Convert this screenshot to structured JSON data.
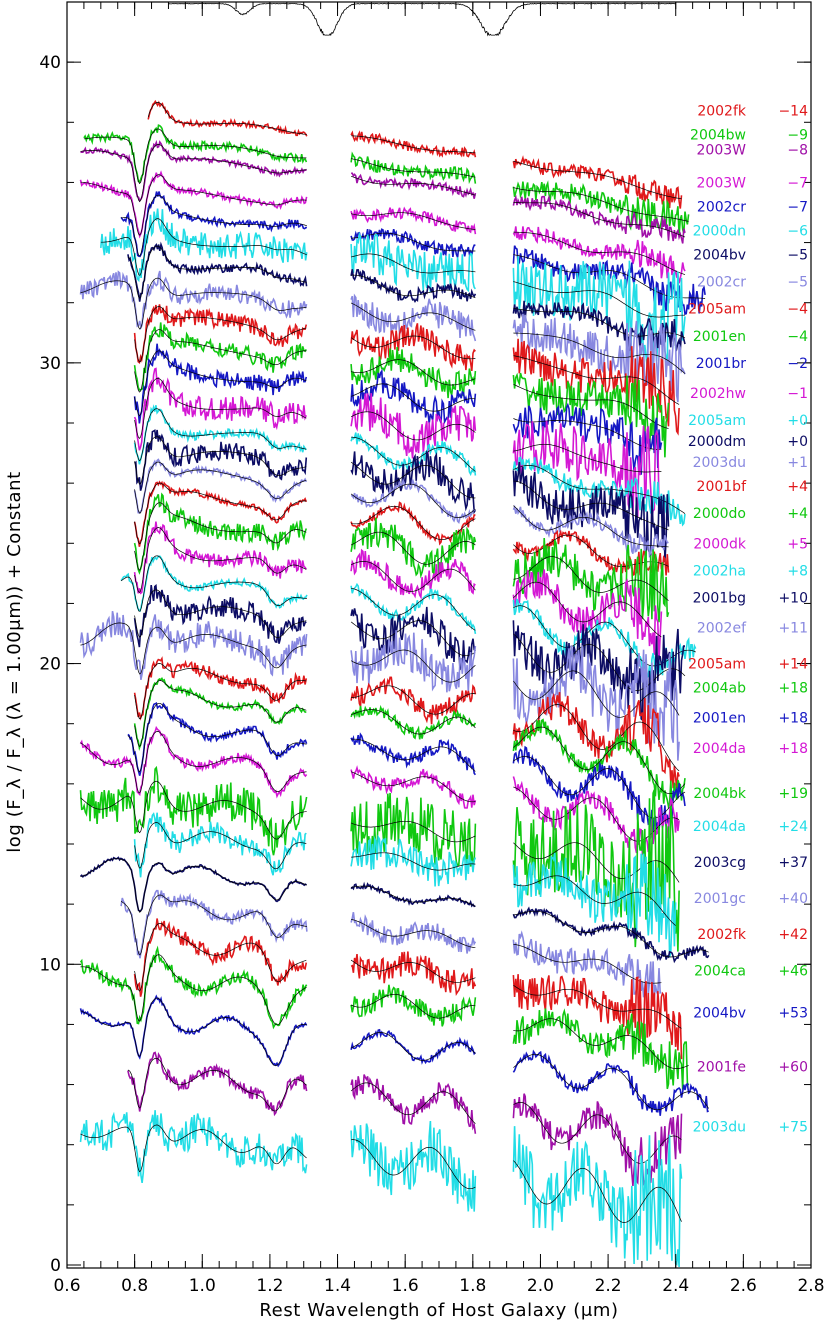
{
  "chart_data": {
    "type": "line",
    "title": "",
    "xlabel": "Rest Wavelength of Host Galaxy (μm)",
    "ylabel": "log (F_λ / F_λ (λ = 1.00μm)) + Constant",
    "xlim": [
      0.6,
      2.8
    ],
    "ylim": [
      -0.1,
      42.0
    ],
    "x_ticks": [
      0.6,
      0.8,
      1.0,
      1.2,
      1.4,
      1.6,
      1.8,
      2.0,
      2.2,
      2.4,
      2.6,
      2.8
    ],
    "x_tick_labels": [
      "0.6",
      "0.8",
      "1.0",
      "1.2",
      "1.4",
      "1.6",
      "1.8",
      "2.0",
      "2.2",
      "2.4",
      "2.6",
      "2.8"
    ],
    "y_ticks": [
      0,
      10,
      20,
      30,
      40
    ],
    "y_tick_labels": [
      "0",
      "10",
      "20",
      "30",
      "40"
    ],
    "windows": [
      [
        0.6,
        1.31
      ],
      [
        1.44,
        1.81
      ],
      [
        1.92,
        2.5
      ]
    ],
    "telluric": {
      "color": "#000000",
      "y_top": 42.0,
      "y_bottom": 40.9
    },
    "legend": "right",
    "series": [
      {
        "name": "2002fk",
        "epoch": "−14",
        "color": "#e0191b",
        "offset": 38.0,
        "x_start": 0.84,
        "x_end": 2.42,
        "noise": 0.1
      },
      {
        "name": "2004bw",
        "epoch": "−9",
        "color": "#10c810",
        "offset": 37.2,
        "x_start": 0.65,
        "x_end": 2.44,
        "noise": 0.14
      },
      {
        "name": "2003W",
        "epoch": "−8",
        "color": "#a010a8",
        "offset": 36.7,
        "x_start": 0.64,
        "x_end": 2.43,
        "noise": 0.1
      },
      {
        "name": "2003W",
        "epoch": "−7",
        "color": "#d418d4",
        "offset": 35.6,
        "x_start": 0.64,
        "x_end": 2.43,
        "noise": 0.12
      },
      {
        "name": "2002cr",
        "epoch": "−7",
        "color": "#1518c4",
        "offset": 34.8,
        "x_start": 0.76,
        "x_end": 2.49,
        "noise": 0.14
      },
      {
        "name": "2000dn",
        "epoch": "−6",
        "color": "#22dde6",
        "offset": 34.0,
        "x_start": 0.7,
        "x_end": 2.43,
        "noise": 0.45
      },
      {
        "name": "2004bv",
        "epoch": "−5",
        "color": "#0c0c64",
        "offset": 33.2,
        "x_start": 0.78,
        "x_end": 2.43,
        "noise": 0.14
      },
      {
        "name": "2002cr",
        "epoch": "−5",
        "color": "#8888e0",
        "offset": 32.3,
        "x_start": 0.64,
        "x_end": 2.43,
        "noise": 0.3
      },
      {
        "name": "2005am",
        "epoch": "−4",
        "color": "#e0191b",
        "offset": 31.4,
        "x_start": 0.8,
        "x_end": 2.41,
        "noise": 0.28
      },
      {
        "name": "2001en",
        "epoch": "−4",
        "color": "#10c810",
        "offset": 30.5,
        "x_start": 0.8,
        "x_end": 2.38,
        "noise": 0.28
      },
      {
        "name": "2001br",
        "epoch": "−2",
        "color": "#1518c4",
        "offset": 29.6,
        "x_start": 0.8,
        "x_end": 2.36,
        "noise": 0.28
      },
      {
        "name": "2002hw",
        "epoch": "−1",
        "color": "#d418d4",
        "offset": 28.6,
        "x_start": 0.8,
        "x_end": 2.36,
        "noise": 0.4
      },
      {
        "name": "2005am",
        "epoch": "+0",
        "color": "#22dde6",
        "offset": 27.7,
        "x_start": 0.8,
        "x_end": 2.43,
        "noise": 0.14
      },
      {
        "name": "2000dm",
        "epoch": "+0",
        "color": "#0c0c64",
        "offset": 27.0,
        "x_start": 0.8,
        "x_end": 2.38,
        "noise": 0.32
      },
      {
        "name": "2003du",
        "epoch": "+1",
        "color": "#8888e0",
        "offset": 26.3,
        "x_start": 0.8,
        "x_end": 2.38,
        "noise": 0.1
      },
      {
        "name": "2001bf",
        "epoch": "+4",
        "color": "#e0191b",
        "offset": 25.5,
        "x_start": 0.8,
        "x_end": 2.38,
        "noise": 0.1
      },
      {
        "name": "2000do",
        "epoch": "+4",
        "color": "#10c810",
        "offset": 24.6,
        "x_start": 0.8,
        "x_end": 2.38,
        "noise": 0.32
      },
      {
        "name": "2000dk",
        "epoch": "+5",
        "color": "#d418d4",
        "offset": 23.6,
        "x_start": 0.8,
        "x_end": 2.36,
        "noise": 0.24
      },
      {
        "name": "2002ha",
        "epoch": "+8",
        "color": "#22dde6",
        "offset": 22.7,
        "x_start": 0.76,
        "x_end": 2.46,
        "noise": 0.12
      },
      {
        "name": "2001bg",
        "epoch": "+10",
        "color": "#0c0c64",
        "offset": 21.8,
        "x_start": 0.8,
        "x_end": 2.43,
        "noise": 0.35
      },
      {
        "name": "2002ef",
        "epoch": "+11",
        "color": "#8888e0",
        "offset": 20.8,
        "x_start": 0.64,
        "x_end": 2.41,
        "noise": 0.45
      },
      {
        "name": "2005am",
        "epoch": "+14",
        "color": "#e0191b",
        "offset": 19.6,
        "x_start": 0.8,
        "x_end": 2.41,
        "noise": 0.22
      },
      {
        "name": "2004ab",
        "epoch": "+18",
        "color": "#10c810",
        "offset": 18.8,
        "x_start": 0.8,
        "x_end": 2.43,
        "noise": 0.12
      },
      {
        "name": "2001en",
        "epoch": "+18",
        "color": "#1518c4",
        "offset": 17.8,
        "x_start": 0.78,
        "x_end": 2.43,
        "noise": 0.14
      },
      {
        "name": "2004da",
        "epoch": "+18",
        "color": "#d418d4",
        "offset": 16.8,
        "x_start": 0.64,
        "x_end": 2.41,
        "noise": 0.16
      },
      {
        "name": "2004bk",
        "epoch": "+19",
        "color": "#10c810",
        "offset": 15.3,
        "x_start": 0.64,
        "x_end": 2.41,
        "noise": 0.65
      },
      {
        "name": "2004da",
        "epoch": "+24",
        "color": "#22dde6",
        "offset": 14.2,
        "x_start": 0.8,
        "x_end": 2.4,
        "noise": 0.35
      },
      {
        "name": "2003cg",
        "epoch": "+37",
        "color": "#0c0c64",
        "offset": 13.0,
        "x_start": 0.64,
        "x_end": 2.5,
        "noise": 0.05
      },
      {
        "name": "2001gc",
        "epoch": "+40",
        "color": "#8888e0",
        "offset": 11.8,
        "x_start": 0.76,
        "x_end": 2.36,
        "noise": 0.2
      },
      {
        "name": "2002fk",
        "epoch": "+42",
        "color": "#e0191b",
        "offset": 10.6,
        "x_start": 0.8,
        "x_end": 2.42,
        "noise": 0.28
      },
      {
        "name": "2004ca",
        "epoch": "+46",
        "color": "#10c810",
        "offset": 9.4,
        "x_start": 0.64,
        "x_end": 2.44,
        "noise": 0.22
      },
      {
        "name": "2004bv",
        "epoch": "+53",
        "color": "#1518c4",
        "offset": 8.0,
        "x_start": 0.64,
        "x_end": 2.5,
        "noise": 0.08
      },
      {
        "name": "2001fe",
        "epoch": "+60",
        "color": "#a010a8",
        "offset": 6.2,
        "x_start": 0.78,
        "x_end": 2.42,
        "noise": 0.22
      },
      {
        "name": "2003du",
        "epoch": "+75",
        "color": "#22dde6",
        "offset": 4.2,
        "x_start": 0.64,
        "x_end": 2.42,
        "noise": 0.55
      }
    ]
  }
}
